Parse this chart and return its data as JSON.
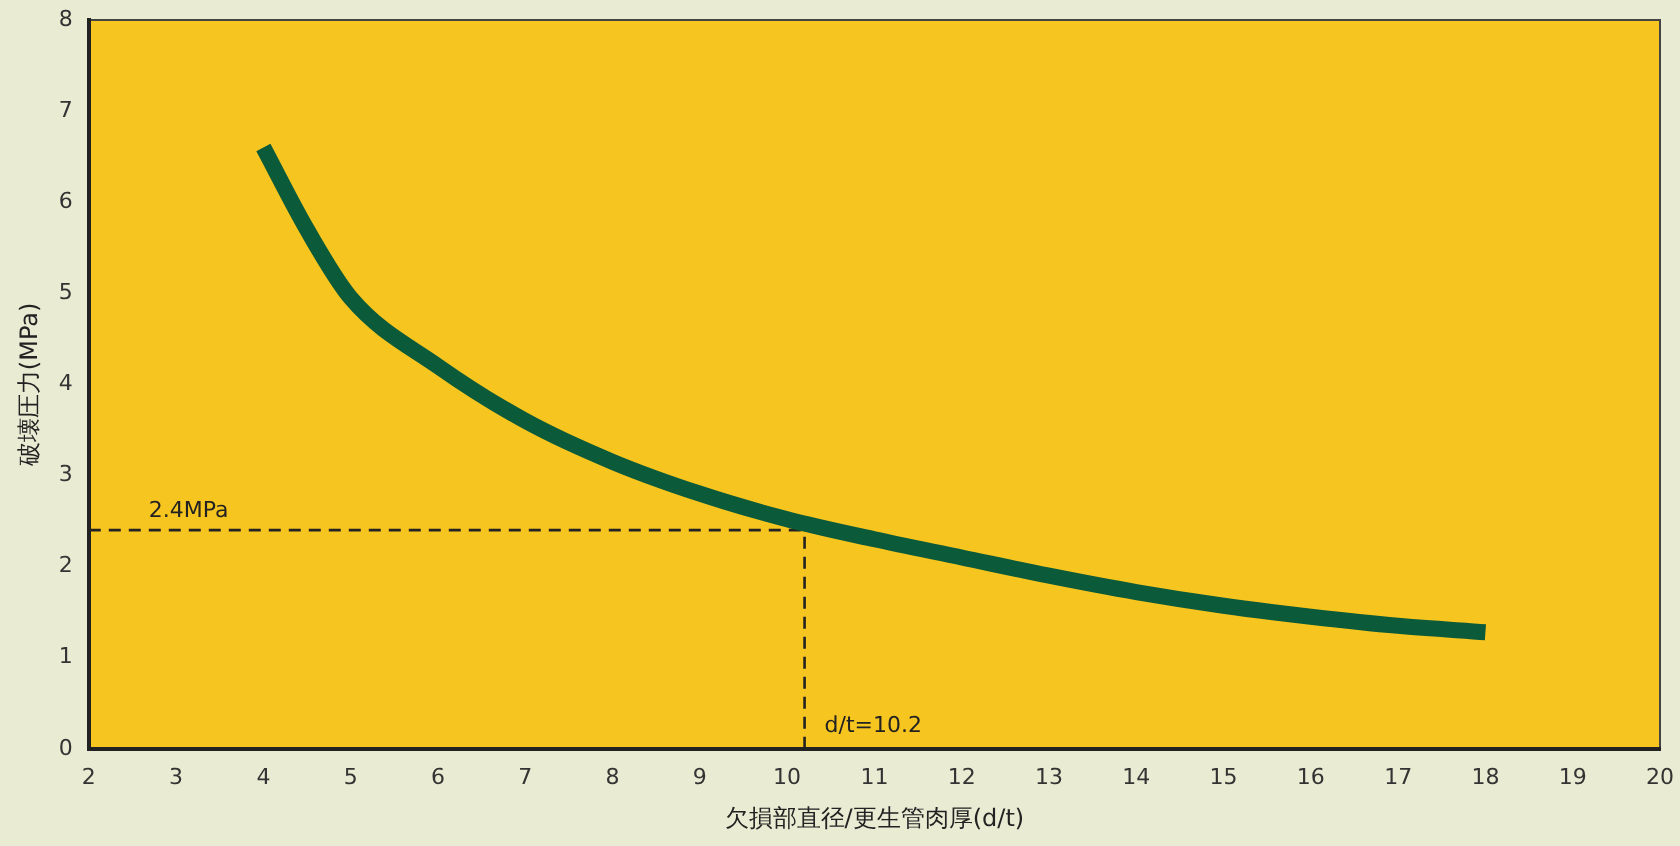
{
  "chart_data": {
    "type": "line",
    "xlabel": "欠損部直径/更生管肉厚(d/t)",
    "ylabel": "破壊圧力(MPa)",
    "x": [
      4,
      4.5,
      5,
      6,
      7,
      8,
      9,
      10,
      11,
      12,
      13,
      14,
      15,
      16,
      17,
      18
    ],
    "series": [
      {
        "color": "#0b5a3a",
        "values": [
          6.6,
          5.7,
          4.95,
          4.2,
          3.6,
          3.15,
          2.8,
          2.52,
          2.3,
          2.1,
          1.9,
          1.72,
          1.57,
          1.45,
          1.35,
          1.28
        ]
      }
    ],
    "xlim": [
      2,
      20
    ],
    "xticks": [
      2,
      3,
      4,
      5,
      6,
      7,
      8,
      9,
      10,
      11,
      12,
      13,
      14,
      15,
      16,
      17,
      18,
      19,
      20
    ],
    "ylim": [
      0,
      8
    ],
    "yticks": [
      0,
      1,
      2,
      3,
      4,
      5,
      6,
      7,
      8
    ],
    "ref_lines": [
      {
        "axis": "y",
        "value": 2.4,
        "label": "2.4MPa",
        "line_style": "dashed"
      },
      {
        "axis": "x",
        "value": 10.2,
        "label": "d/t=10.2",
        "line_style": "dashed"
      }
    ],
    "grid": false,
    "legend": false,
    "marker": "none",
    "line_style": "solid"
  }
}
